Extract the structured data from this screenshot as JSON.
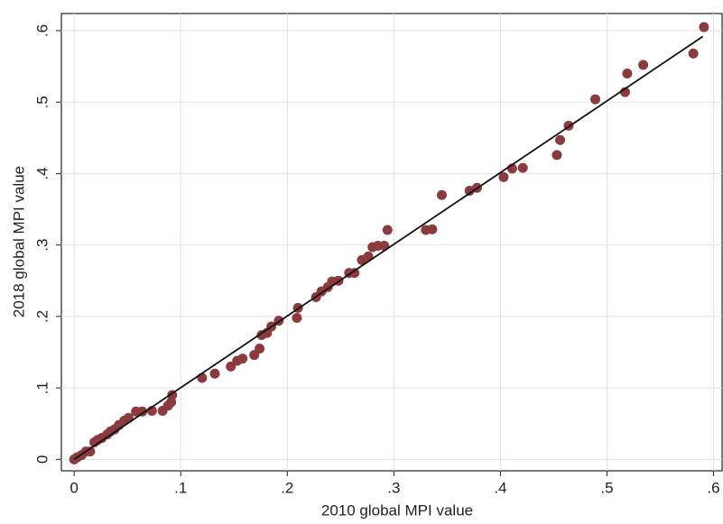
{
  "chart_data": {
    "type": "scatter",
    "xlabel": "2010 global MPI value",
    "ylabel": "2018 global MPI value",
    "xlim": [
      -0.012,
      0.608
    ],
    "ylim": [
      -0.016,
      0.624
    ],
    "xticks": [
      0,
      {
        "value": 0.1,
        "label": ".1"
      },
      {
        "value": 0.2,
        "label": ".2"
      },
      {
        "value": 0.3,
        "label": ".3"
      },
      {
        "value": 0.4,
        "label": ".4"
      },
      {
        "value": 0.5,
        "label": ".5"
      },
      {
        "value": 0.6,
        "label": ".6"
      }
    ],
    "yticks": [
      0,
      {
        "value": 0.1,
        "label": ".1"
      },
      {
        "value": 0.2,
        "label": ".2"
      },
      {
        "value": 0.3,
        "label": ".3"
      },
      {
        "value": 0.4,
        "label": ".4"
      },
      {
        "value": 0.5,
        "label": ".5"
      },
      {
        "value": 0.6,
        "label": ".6"
      }
    ],
    "grid": true,
    "color": "#8b3a3e",
    "x": [
      0,
      0.003,
      0.007,
      0.011,
      0.015,
      0.019,
      0.022,
      0.026,
      0.031,
      0.034,
      0.038,
      0.042,
      0.047,
      0.051,
      0.058,
      0.064,
      0.073,
      0.083,
      0.088,
      0.091,
      0.092,
      0.12,
      0.132,
      0.147,
      0.153,
      0.158,
      0.169,
      0.174,
      0.176,
      0.181,
      0.185,
      0.192,
      0.209,
      0.21,
      0.227,
      0.232,
      0.238,
      0.242,
      0.248,
      0.258,
      0.263,
      0.27,
      0.276,
      0.28,
      0.285,
      0.291,
      0.294,
      0.33,
      0.336,
      0.345,
      0.371,
      0.378,
      0.403,
      0.411,
      0.421,
      0.453,
      0.456,
      0.464,
      0.489,
      0.517,
      0.519,
      0.534,
      0.581,
      0.591
    ],
    "y": [
      0,
      0.003,
      0.006,
      0.011,
      0.011,
      0.024,
      0.027,
      0.03,
      0.035,
      0.039,
      0.042,
      0.048,
      0.054,
      0.058,
      0.067,
      0.067,
      0.068,
      0.068,
      0.075,
      0.08,
      0.09,
      0.114,
      0.12,
      0.13,
      0.138,
      0.141,
      0.146,
      0.155,
      0.174,
      0.177,
      0.186,
      0.194,
      0.198,
      0.212,
      0.227,
      0.235,
      0.241,
      0.249,
      0.25,
      0.261,
      0.261,
      0.279,
      0.284,
      0.297,
      0.299,
      0.299,
      0.321,
      0.321,
      0.322,
      0.37,
      0.376,
      0.38,
      0.395,
      0.407,
      0.408,
      0.426,
      0.447,
      0.467,
      0.504,
      0.514,
      0.54,
      0.552,
      0.568,
      0.605
    ],
    "fit_line": {
      "color": "#111111",
      "x": [
        0,
        0.59
      ],
      "y": [
        0,
        0.592
      ]
    }
  }
}
